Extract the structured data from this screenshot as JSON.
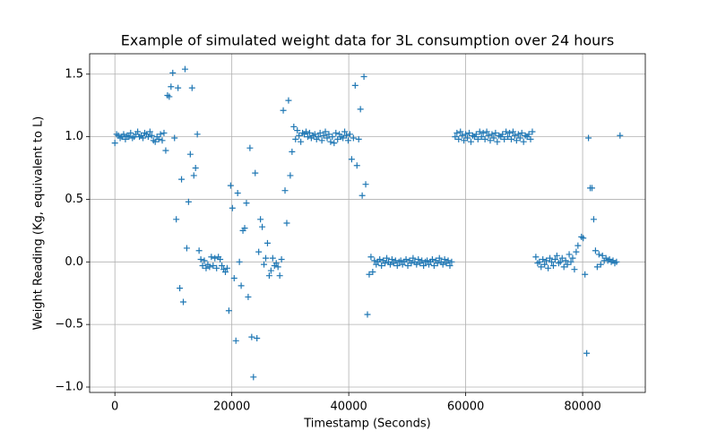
{
  "chart_data": {
    "type": "scatter",
    "title": "Example of simulated weight data for 3L consumption over 24 hours",
    "xlabel": "Timestamp (Seconds)",
    "ylabel": "Weight Reading (Kg, equivalent to L)",
    "xlim": [
      -4320,
      90720
    ],
    "ylim": [
      -1.043,
      1.663
    ],
    "xticks": [
      0,
      20000,
      40000,
      60000,
      80000
    ],
    "yticks": [
      {
        "value": -1,
        "label": "−1.0"
      },
      {
        "value": -0.5,
        "label": "−0.5"
      },
      {
        "value": 0,
        "label": "0.0"
      },
      0.5,
      {
        "value": 1,
        "label": "1.0"
      },
      1.5
    ],
    "grid": true,
    "marker": "+",
    "color": "#1f77b4",
    "x": [
      0,
      300,
      600,
      900,
      1200,
      1500,
      1800,
      2100,
      2400,
      2700,
      3000,
      3300,
      3600,
      3900,
      4200,
      4500,
      4800,
      5100,
      5400,
      5700,
      6000,
      6300,
      6600,
      6900,
      7200,
      7500,
      7800,
      8100,
      8400,
      8700,
      9000,
      9300,
      9600,
      9900,
      10200,
      10500,
      10800,
      11100,
      11400,
      11700,
      12000,
      12300,
      12600,
      12900,
      13200,
      13500,
      13800,
      14100,
      14400,
      14700,
      15000,
      15300,
      15600,
      15900,
      16200,
      16500,
      16800,
      17100,
      17400,
      17700,
      18000,
      18300,
      18600,
      18900,
      19200,
      19500,
      19800,
      20100,
      20400,
      20700,
      21000,
      21300,
      21600,
      21900,
      22200,
      22500,
      22800,
      23100,
      23400,
      23700,
      24000,
      24300,
      24600,
      24900,
      25200,
      25500,
      25800,
      26100,
      26400,
      26700,
      27000,
      27300,
      27600,
      27900,
      28200,
      28500,
      28800,
      29100,
      29400,
      29700,
      30000,
      30300,
      30600,
      30900,
      31200,
      31500,
      31800,
      32100,
      32400,
      32700,
      33000,
      33300,
      33600,
      33900,
      34200,
      34500,
      34800,
      35100,
      35400,
      35700,
      36000,
      36300,
      36600,
      36900,
      37200,
      37500,
      37800,
      38100,
      38400,
      38700,
      39000,
      39300,
      39600,
      39900,
      40200,
      40500,
      40800,
      41100,
      41400,
      41700,
      42000,
      42300,
      42600,
      42900,
      43200,
      43500,
      43800,
      44100,
      44400,
      44700,
      45000,
      45300,
      45600,
      45900,
      46200,
      46500,
      46800,
      47100,
      47400,
      47700,
      48000,
      48300,
      48600,
      48900,
      49200,
      49500,
      49800,
      50100,
      50400,
      50700,
      51000,
      51300,
      51600,
      51900,
      52200,
      52500,
      52800,
      53100,
      53400,
      53700,
      54000,
      54300,
      54600,
      54900,
      55200,
      55500,
      55800,
      56100,
      56400,
      56700,
      57000,
      57300,
      57600,
      58200,
      58500,
      58800,
      59100,
      59400,
      59700,
      60000,
      60300,
      60600,
      60900,
      61200,
      61500,
      61800,
      62100,
      62400,
      62700,
      63000,
      63300,
      63600,
      63900,
      64200,
      64500,
      64800,
      65100,
      65400,
      65700,
      66000,
      66300,
      66600,
      66900,
      67200,
      67500,
      67800,
      68100,
      68400,
      68700,
      69000,
      69300,
      69600,
      69900,
      70200,
      70500,
      70800,
      71100,
      71400,
      72000,
      72300,
      72600,
      72900,
      73200,
      73500,
      73800,
      74100,
      74400,
      74700,
      75000,
      75300,
      75600,
      75900,
      76200,
      76500,
      76800,
      77100,
      77400,
      77700,
      78000,
      78300,
      78600,
      78900,
      79200,
      79800,
      80100,
      80400,
      80700,
      81000,
      81300,
      81600,
      81900,
      82200,
      82500,
      82800,
      83100,
      83400,
      83700,
      84000,
      84300,
      84600,
      84900,
      85200,
      85500,
      85800,
      86400
    ],
    "values": [
      0.95,
      1.02,
      1.01,
      0.99,
      1.0,
      1.02,
      0.98,
      1.01,
      1.0,
      1.03,
      0.99,
      1.0,
      1.02,
      1.04,
      1.0,
      1.01,
      0.99,
      1.03,
      1.02,
      1.0,
      1.04,
      1.01,
      0.97,
      0.96,
      1.0,
      0.98,
      1.02,
      0.97,
      1.03,
      0.89,
      1.33,
      1.32,
      1.4,
      1.51,
      0.99,
      0.34,
      1.39,
      -0.21,
      0.66,
      -0.32,
      1.54,
      0.11,
      0.48,
      0.86,
      1.39,
      0.69,
      0.75,
      1.02,
      0.09,
      0.02,
      -0.03,
      0.01,
      -0.05,
      -0.02,
      -0.04,
      0.04,
      -0.03,
      0.03,
      -0.05,
      0.04,
      0.02,
      -0.03,
      -0.06,
      -0.08,
      -0.05,
      -0.39,
      0.61,
      0.43,
      -0.13,
      -0.63,
      0.55,
      0.0,
      -0.19,
      0.25,
      0.27,
      0.47,
      -0.28,
      0.91,
      -0.6,
      -0.92,
      0.71,
      -0.61,
      0.08,
      0.34,
      0.28,
      -0.02,
      0.03,
      0.15,
      -0.11,
      -0.07,
      0.03,
      -0.03,
      -0.01,
      -0.04,
      -0.11,
      0.02,
      1.21,
      0.57,
      0.31,
      1.29,
      0.69,
      0.88,
      1.08,
      0.98,
      1.05,
      1.01,
      0.96,
      1.03,
      1.02,
      1.04,
      1.0,
      1.03,
      0.99,
      1.01,
      1.02,
      0.98,
      1.0,
      1.03,
      0.97,
      1.01,
      1.04,
      0.99,
      1.02,
      0.96,
      1.0,
      0.95,
      1.03,
      0.98,
      1.02,
      1.0,
      0.99,
      1.04,
      1.01,
      0.97,
      1.02,
      0.82,
      0.99,
      1.41,
      0.77,
      0.98,
      1.22,
      0.53,
      1.48,
      0.62,
      -0.42,
      -0.1,
      0.04,
      -0.08,
      0.01,
      -0.02,
      0.0,
      0.02,
      -0.03,
      0.01,
      -0.01,
      0.03,
      0.0,
      -0.02,
      0.02,
      -0.01,
      0.01,
      -0.03,
      0.0,
      0.01,
      -0.02,
      0.0,
      0.02,
      -0.03,
      0.01,
      -0.01,
      0.03,
      0.0,
      -0.02,
      0.02,
      -0.01,
      0.01,
      -0.03,
      0.0,
      0.01,
      -0.02,
      0.0,
      0.02,
      -0.03,
      0.01,
      -0.01,
      0.03,
      0.0,
      -0.02,
      0.02,
      -0.01,
      0.01,
      -0.03,
      0.0,
      1.0,
      1.03,
      0.98,
      1.04,
      1.01,
      0.97,
      1.02,
      0.99,
      1.03,
      0.96,
      1.01,
      1.0,
      1.02,
      0.98,
      1.04,
      1.0,
      1.03,
      0.98,
      1.04,
      1.01,
      0.97,
      1.02,
      0.99,
      1.03,
      0.96,
      1.01,
      1.0,
      1.02,
      0.98,
      1.04,
      1.0,
      1.03,
      0.98,
      1.04,
      1.01,
      0.97,
      1.02,
      0.99,
      1.03,
      0.96,
      1.01,
      1.0,
      1.02,
      0.98,
      1.04,
      0.04,
      -0.01,
      0.0,
      -0.04,
      0.02,
      -0.02,
      0.01,
      -0.05,
      0.03,
      0.0,
      -0.03,
      0.02,
      0.05,
      -0.01,
      0.0,
      0.03,
      -0.04,
      0.01,
      -0.02,
      0.06,
      0.0,
      0.03,
      -0.06,
      0.08,
      0.13,
      0.2,
      0.19,
      -0.1,
      -0.73,
      0.99,
      0.59,
      0.59,
      0.34,
      0.09,
      -0.04,
      0.06,
      -0.02,
      0.05,
      0.01,
      0.03,
      0.01,
      0.02,
      0.0,
      0.01,
      -0.01,
      0.0,
      1.01
    ]
  }
}
